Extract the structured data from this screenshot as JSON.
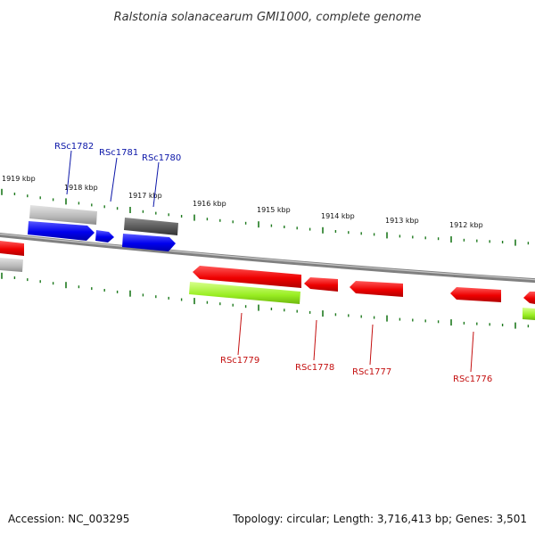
{
  "title": "Ralstonia solanacearum GMI1000, complete genome",
  "footer": {
    "accession": "Accession: NC_003295",
    "info": "Topology: circular; Length: 3,716,413 bp; Genes: 3,501"
  },
  "ticks": [
    "1919 kbp",
    "1918 kbp",
    "1917 kbp",
    "1916 kbp",
    "1915 kbp",
    "1914 kbp",
    "1913 kbp",
    "1912 kbp"
  ],
  "genes_forward": [
    "RSc1782",
    "RSc1781",
    "RSc1780"
  ],
  "genes_reverse": [
    "RSc1779",
    "RSc1778",
    "RSc1777",
    "RSc1776"
  ],
  "colors": {
    "backbone": "#808080",
    "forward_cds": "#0000ee",
    "reverse_cds": "#ee0000",
    "forward_gene": "#b8b8b8",
    "forward_gene_dark": "#555555",
    "reverse_gene": "#99ee22",
    "tick": "#1e7a1e",
    "label_forward": "#0b16a8",
    "label_reverse": "#c41010"
  }
}
